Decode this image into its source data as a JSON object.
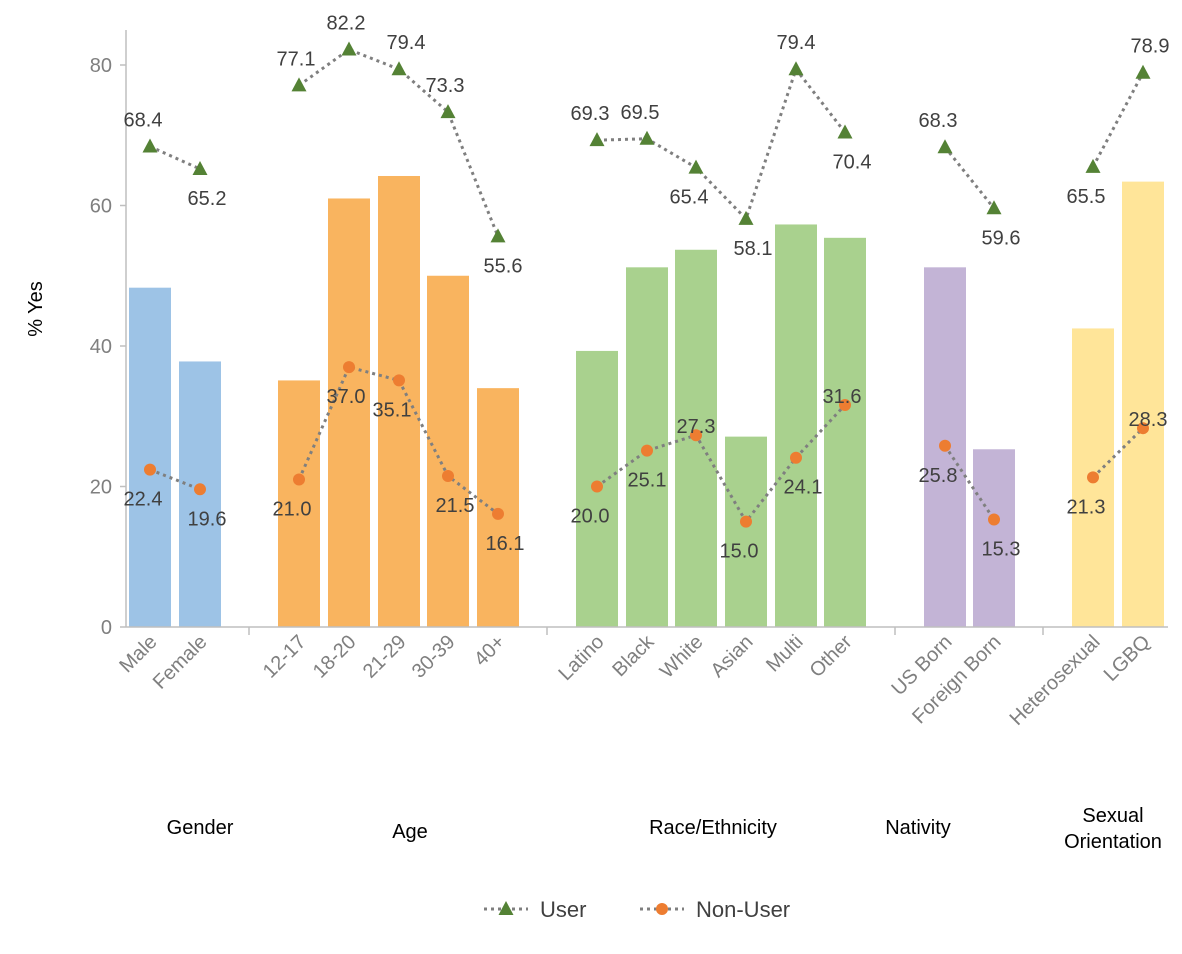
{
  "chart_data": {
    "type": "bar",
    "ylabel": "% Yes",
    "ylim": [
      0,
      85
    ],
    "yticks": [
      0,
      20,
      40,
      60,
      80
    ],
    "grid": false,
    "legend_placement": "bottom",
    "categories": [
      "Male",
      "Female",
      "12-17",
      "18-20",
      "21-29",
      "30-39",
      "40+",
      "Latino",
      "Black",
      "White",
      "Asian",
      "Multi",
      "Other",
      "US Born",
      "Foreign Born",
      "Heterosexual",
      "LGBQ"
    ],
    "groups": [
      {
        "label": "Gender",
        "categories": [
          "Male",
          "Female"
        ],
        "color": "#9dc3e6"
      },
      {
        "label": "Age",
        "categories": [
          "12-17",
          "18-20",
          "21-29",
          "30-39",
          "40+"
        ],
        "color": "#f9b45f"
      },
      {
        "label": "Race/Ethnicity",
        "categories": [
          "Latino",
          "Black",
          "White",
          "Asian",
          "Multi",
          "Other"
        ],
        "color": "#a9d18e"
      },
      {
        "label": "Nativity",
        "categories": [
          "US Born",
          "Foreign Born"
        ],
        "color": "#c3b4d6"
      },
      {
        "label": "Sexual Orientation",
        "categories": [
          "Heterosexual",
          "LGBQ"
        ],
        "color": "#ffe599"
      }
    ],
    "bars": [
      48.3,
      37.8,
      35.1,
      61.0,
      64.2,
      50.0,
      34.0,
      39.3,
      51.2,
      53.7,
      27.1,
      57.3,
      55.4,
      51.2,
      25.3,
      42.5,
      63.4
    ],
    "series": [
      {
        "name": "User",
        "marker": "triangle",
        "color": "#548235",
        "values": [
          68.4,
          65.2,
          77.1,
          82.2,
          79.4,
          73.3,
          55.6,
          69.3,
          69.5,
          65.4,
          58.1,
          79.4,
          70.4,
          68.3,
          59.6,
          65.5,
          78.9
        ]
      },
      {
        "name": "Non-User",
        "marker": "circle",
        "color": "#ed7d31",
        "values": [
          22.4,
          19.6,
          21.0,
          37.0,
          35.1,
          21.5,
          16.1,
          20.0,
          25.1,
          27.3,
          15.0,
          24.1,
          31.6,
          25.8,
          15.3,
          21.3,
          28.3
        ]
      }
    ]
  }
}
